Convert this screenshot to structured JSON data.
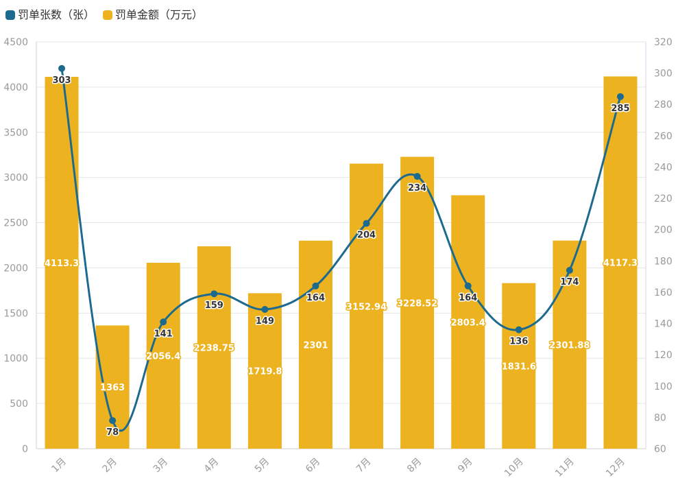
{
  "legend": [
    {
      "name": "罚单张数（张）",
      "color": "#1d6a8f"
    },
    {
      "name": "罚单金额（万元）",
      "color": "#ecb21f"
    }
  ],
  "chart_data": {
    "type": "bar+line",
    "categories": [
      "1月",
      "2月",
      "3月",
      "4月",
      "5月",
      "6月",
      "7月",
      "8月",
      "9月",
      "10月",
      "11月",
      "12月"
    ],
    "series": [
      {
        "name": "罚单金额（万元）",
        "type": "bar",
        "axis": "left",
        "color": "#ecb21f",
        "values": [
          4113.3,
          1363,
          2056.4,
          2238.75,
          1719.8,
          2301,
          3152.94,
          3228.52,
          2803.4,
          1831.6,
          2301.88,
          4117.3
        ]
      },
      {
        "name": "罚单张数（张）",
        "type": "line",
        "axis": "right",
        "color": "#1d6a8f",
        "values": [
          303,
          78,
          141,
          159,
          149,
          164,
          204,
          234,
          164,
          136,
          174,
          285
        ]
      }
    ],
    "y_left": {
      "min": 0,
      "max": 4500,
      "ticks": [
        0,
        500,
        1000,
        1500,
        2000,
        2500,
        3000,
        3500,
        4000,
        4500
      ]
    },
    "y_right": {
      "min": 60,
      "max": 320,
      "ticks": [
        60,
        80,
        100,
        120,
        140,
        160,
        180,
        200,
        220,
        240,
        260,
        280,
        300,
        320
      ]
    },
    "grid": true,
    "legend_position": "top-left"
  }
}
